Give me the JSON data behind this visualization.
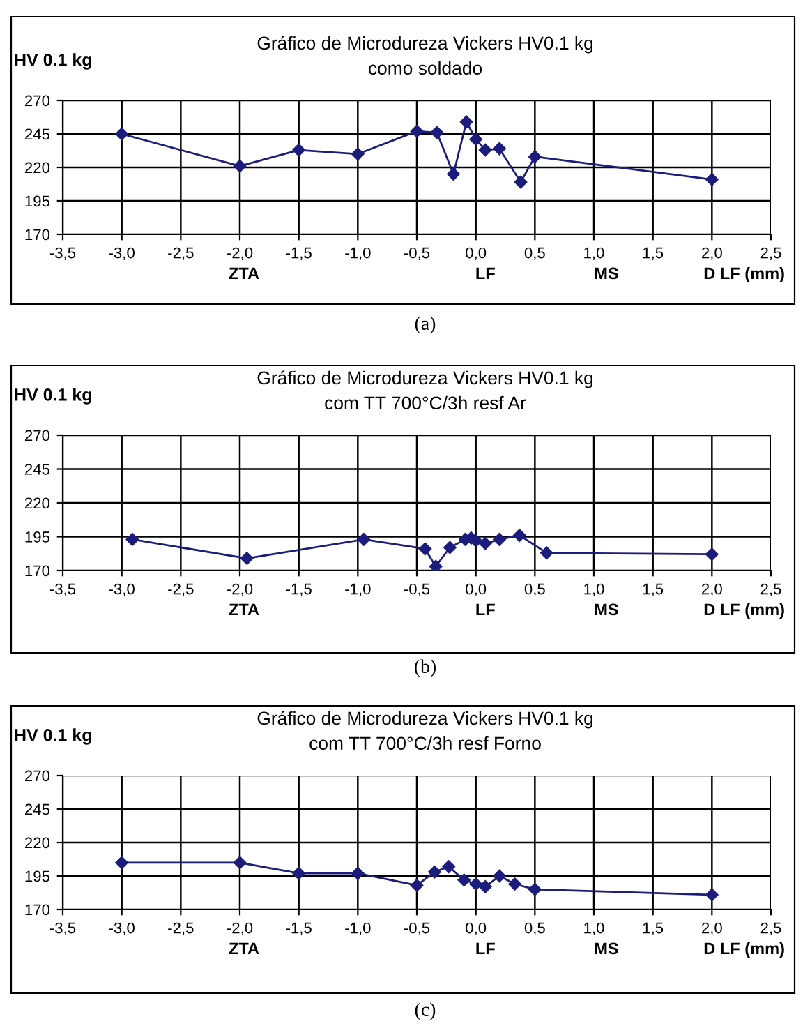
{
  "chart_data": [
    {
      "type": "line",
      "title": "Gráfico de Microdureza Vickers HV0.1 kg",
      "subtitle": "como soldado",
      "ylabel": "HV 0.1 kg",
      "annotations": [
        "ZTA",
        "LF",
        "MS",
        "D LF (mm)",
        "(a)"
      ],
      "series": [
        {
          "color": "#1c1c7c",
          "x": [
            -3.0,
            -2.0,
            -1.5,
            -1.0,
            -0.5,
            -0.33,
            -0.19,
            -0.08,
            0.0,
            0.08,
            0.2,
            0.38,
            0.5,
            2.0
          ],
          "values": [
            245,
            221,
            233,
            230,
            247,
            246,
            215,
            254,
            241,
            233,
            234,
            209,
            228,
            211
          ]
        }
      ],
      "xlim": [
        -3.5,
        2.5
      ],
      "xticks": [
        {
          "value": -3.5,
          "label": "-3,5"
        },
        {
          "value": -3.0,
          "label": "-3,0"
        },
        {
          "value": -2.5,
          "label": "-2,5"
        },
        {
          "value": -2.0,
          "label": "-2,0"
        },
        {
          "value": -1.5,
          "label": "-1,5"
        },
        {
          "value": -1.0,
          "label": "-1,0"
        },
        {
          "value": -0.5,
          "label": "-0,5"
        },
        {
          "value": 0.0,
          "label": "0,0"
        },
        {
          "value": 0.5,
          "label": "0,5"
        },
        {
          "value": 1.0,
          "label": "1,0"
        },
        {
          "value": 1.5,
          "label": "1,5"
        },
        {
          "value": 2.0,
          "label": "2,0"
        },
        {
          "value": 2.5,
          "label": "2,5"
        }
      ],
      "ylim": [
        170,
        270
      ],
      "yticks": [
        170,
        195,
        220,
        245,
        270
      ],
      "grid": true,
      "marker": "diamond",
      "line_style": "solid"
    },
    {
      "type": "line",
      "title": "Gráfico de Microdureza Vickers HV0.1 kg",
      "subtitle": "com TT 700°C/3h resf Ar",
      "ylabel": "HV 0.1 kg",
      "annotations": [
        "ZTA",
        "LF",
        "MS",
        "D LF (mm)",
        "(b)"
      ],
      "series": [
        {
          "color": "#1c1c7c",
          "x": [
            -2.91,
            -1.94,
            -0.95,
            -0.43,
            -0.34,
            -0.22,
            -0.09,
            -0.04,
            0.0,
            0.08,
            0.2,
            0.37,
            0.6,
            2.0
          ],
          "values": [
            193,
            179,
            193,
            186,
            173,
            187,
            193,
            194,
            192,
            190,
            193,
            196,
            183,
            182
          ]
        }
      ],
      "xlim": [
        -3.5,
        2.5
      ],
      "xticks": [
        {
          "value": -3.5,
          "label": "-3,5"
        },
        {
          "value": -3.0,
          "label": "-3,0"
        },
        {
          "value": -2.5,
          "label": "-2,5"
        },
        {
          "value": -2.0,
          "label": "-2,0"
        },
        {
          "value": -1.5,
          "label": "-1,5"
        },
        {
          "value": -1.0,
          "label": "-1,0"
        },
        {
          "value": -0.5,
          "label": "-0,5"
        },
        {
          "value": 0.0,
          "label": "0,0"
        },
        {
          "value": 0.5,
          "label": "0,5"
        },
        {
          "value": 1.0,
          "label": "1,0"
        },
        {
          "value": 1.5,
          "label": "1,5"
        },
        {
          "value": 2.0,
          "label": "2,0"
        },
        {
          "value": 2.5,
          "label": "2,5"
        }
      ],
      "ylim": [
        170,
        270
      ],
      "yticks": [
        170,
        195,
        220,
        245,
        270
      ],
      "grid": true,
      "marker": "diamond",
      "line_style": "solid"
    },
    {
      "type": "line",
      "title": "Gráfico de Microdureza Vickers HV0.1 kg",
      "subtitle": "com TT 700°C/3h resf Forno",
      "ylabel": "HV 0.1 kg",
      "annotations": [
        "ZTA",
        "LF",
        "MS",
        "D LF (mm)",
        "(c)"
      ],
      "series": [
        {
          "color": "#1c1c7c",
          "x": [
            -3.0,
            -2.0,
            -1.5,
            -1.0,
            -0.5,
            -0.35,
            -0.23,
            -0.1,
            0.0,
            0.08,
            0.2,
            0.33,
            0.5,
            2.0
          ],
          "values": [
            205,
            205,
            197,
            197,
            188,
            198,
            202,
            192,
            189,
            187,
            195,
            189,
            185,
            181
          ]
        }
      ],
      "xlim": [
        -3.5,
        2.5
      ],
      "xticks": [
        {
          "value": -3.5,
          "label": "-3,5"
        },
        {
          "value": -3.0,
          "label": "-3,0"
        },
        {
          "value": -2.5,
          "label": "-2,5"
        },
        {
          "value": -2.0,
          "label": "-2,0"
        },
        {
          "value": -1.5,
          "label": "-1,5"
        },
        {
          "value": -1.0,
          "label": "-1,0"
        },
        {
          "value": -0.5,
          "label": "-0,5"
        },
        {
          "value": 0.0,
          "label": "0,0"
        },
        {
          "value": 0.5,
          "label": "0,5"
        },
        {
          "value": 1.0,
          "label": "1,0"
        },
        {
          "value": 1.5,
          "label": "1,5"
        },
        {
          "value": 2.0,
          "label": "2,0"
        },
        {
          "value": 2.5,
          "label": "2,5"
        }
      ],
      "ylim": [
        170,
        270
      ],
      "yticks": [
        170,
        195,
        220,
        245,
        270
      ],
      "grid": true,
      "marker": "diamond",
      "line_style": "solid"
    }
  ]
}
